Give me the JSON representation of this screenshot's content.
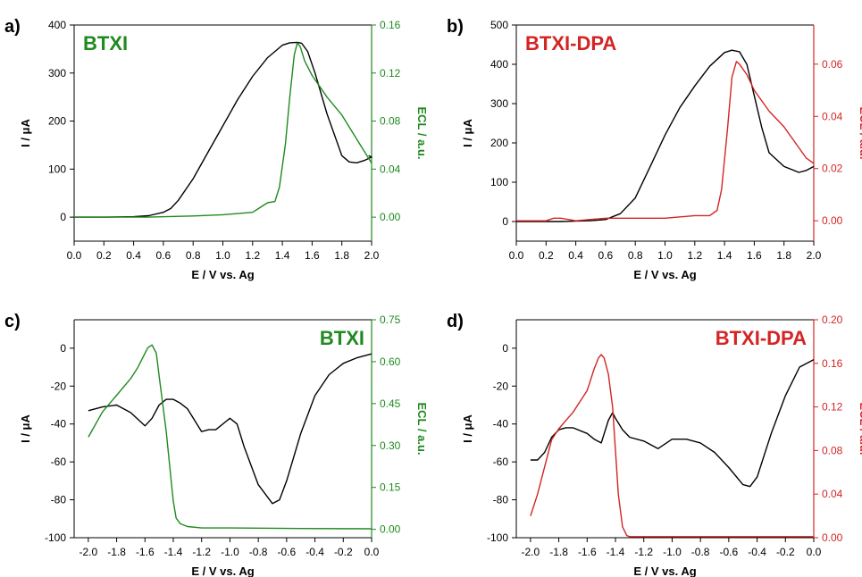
{
  "colors": {
    "current": "#000000",
    "green": "#1f8a1f",
    "red": "#d42424"
  },
  "chart_data": [
    {
      "panel_label": "a)",
      "type": "line",
      "title": "BTXI",
      "title_color": "#1f8a1f",
      "xlabel": "E / V vs. Ag",
      "ylabel": "I / μA",
      "y2label": "ECL / a.u.",
      "right_color": "#1f8a1f",
      "xlim": [
        0.0,
        2.0
      ],
      "ylim": [
        -50,
        400
      ],
      "y2lim": [
        -0.02,
        0.16
      ],
      "xticks": [
        0.0,
        0.2,
        0.4,
        0.6,
        0.8,
        1.0,
        1.2,
        1.4,
        1.6,
        1.8,
        2.0
      ],
      "yticks": [
        0,
        100,
        200,
        300,
        400
      ],
      "y2ticks": [
        0.0,
        0.04,
        0.08,
        0.12,
        0.16
      ],
      "xtick_decimals": 1,
      "y2tick_decimals": 2,
      "series": [
        {
          "axis": "left",
          "color": "#000000",
          "x": [
            0.0,
            0.2,
            0.4,
            0.5,
            0.6,
            0.65,
            0.7,
            0.8,
            0.9,
            1.0,
            1.1,
            1.2,
            1.3,
            1.4,
            1.45,
            1.5,
            1.53,
            1.57,
            1.62,
            1.7,
            1.8,
            1.85,
            1.9,
            1.95,
            2.0,
            1.98
          ],
          "y": [
            0,
            0,
            1,
            3,
            10,
            18,
            35,
            80,
            135,
            190,
            245,
            293,
            332,
            358,
            363,
            364,
            362,
            345,
            300,
            215,
            128,
            115,
            113,
            118,
            125,
            128
          ]
        },
        {
          "axis": "right",
          "color": "#1f8a1f",
          "x": [
            0.0,
            0.5,
            0.8,
            1.0,
            1.1,
            1.2,
            1.25,
            1.3,
            1.35,
            1.38,
            1.42,
            1.45,
            1.48,
            1.5,
            1.52,
            1.55,
            1.6,
            1.7,
            1.8,
            1.9,
            1.95,
            2.0
          ],
          "y": [
            0.0,
            0.0,
            0.001,
            0.002,
            0.003,
            0.004,
            0.008,
            0.012,
            0.013,
            0.025,
            0.06,
            0.1,
            0.135,
            0.145,
            0.142,
            0.13,
            0.118,
            0.1,
            0.085,
            0.065,
            0.055,
            0.045
          ]
        }
      ]
    },
    {
      "panel_label": "b)",
      "type": "line",
      "title": "BTXI-DPA",
      "title_color": "#d42424",
      "xlabel": "E / V vs. Ag",
      "ylabel": "I / μA",
      "y2label": "ECL / a.u.",
      "right_color": "#d42424",
      "xlim": [
        0.0,
        2.0
      ],
      "ylim": [
        -50,
        500
      ],
      "y2lim": [
        -0.0078,
        0.075
      ],
      "xticks": [
        0.0,
        0.2,
        0.4,
        0.6,
        0.8,
        1.0,
        1.2,
        1.4,
        1.6,
        1.8,
        2.0
      ],
      "yticks": [
        0,
        100,
        200,
        300,
        400,
        500
      ],
      "y2ticks": [
        0.0,
        0.02,
        0.04,
        0.06
      ],
      "xtick_decimals": 1,
      "y2tick_decimals": 2,
      "series": [
        {
          "axis": "left",
          "color": "#000000",
          "x": [
            0.0,
            0.3,
            0.5,
            0.6,
            0.7,
            0.8,
            0.9,
            1.0,
            1.1,
            1.2,
            1.3,
            1.4,
            1.45,
            1.5,
            1.55,
            1.6,
            1.65,
            1.7,
            1.8,
            1.9,
            1.95,
            2.0
          ],
          "y": [
            0,
            0,
            2,
            5,
            20,
            60,
            140,
            220,
            290,
            345,
            395,
            430,
            436,
            432,
            400,
            320,
            240,
            175,
            140,
            125,
            130,
            140
          ]
        },
        {
          "axis": "right",
          "color": "#d42424",
          "x": [
            0.0,
            0.2,
            0.25,
            0.3,
            0.35,
            0.4,
            0.5,
            0.6,
            0.8,
            1.0,
            1.2,
            1.3,
            1.35,
            1.38,
            1.42,
            1.45,
            1.48,
            1.5,
            1.55,
            1.6,
            1.7,
            1.8,
            1.9,
            1.95,
            2.0
          ],
          "y": [
            0.0,
            0.0,
            0.001,
            0.001,
            0.0005,
            0.0,
            0.0005,
            0.001,
            0.001,
            0.001,
            0.002,
            0.002,
            0.004,
            0.012,
            0.035,
            0.055,
            0.061,
            0.06,
            0.056,
            0.05,
            0.042,
            0.036,
            0.028,
            0.024,
            0.022
          ]
        }
      ]
    },
    {
      "panel_label": "c)",
      "type": "line",
      "title": "BTXI",
      "title_color": "#1f8a1f",
      "xlabel": "E / V vs. Ag",
      "ylabel": "I / μA",
      "y2label": "ECL / a.u.",
      "right_color": "#1f8a1f",
      "xlim": [
        -2.1,
        0.0
      ],
      "ylim": [
        -100,
        15
      ],
      "y2lim": [
        -0.03,
        0.75
      ],
      "xticks": [
        -2.0,
        -1.8,
        -1.6,
        -1.4,
        -1.2,
        -1.0,
        -0.8,
        -0.6,
        -0.4,
        -0.2,
        0.0
      ],
      "yticks": [
        0,
        -20,
        -40,
        -60,
        -80,
        -100
      ],
      "y2ticks": [
        0.0,
        0.15,
        0.3,
        0.45,
        0.6,
        0.75
      ],
      "xtick_decimals": 1,
      "y2tick_decimals": 2,
      "series": [
        {
          "axis": "left",
          "color": "#000000",
          "x": [
            -2.0,
            -1.9,
            -1.8,
            -1.7,
            -1.6,
            -1.55,
            -1.5,
            -1.45,
            -1.4,
            -1.35,
            -1.3,
            -1.2,
            -1.15,
            -1.1,
            -1.0,
            -0.95,
            -0.9,
            -0.8,
            -0.7,
            -0.65,
            -0.6,
            -0.5,
            -0.4,
            -0.3,
            -0.2,
            -0.1,
            0.0
          ],
          "y": [
            -33,
            -31,
            -30,
            -34,
            -41,
            -37,
            -30,
            -27,
            -27,
            -29,
            -32,
            -44,
            -43,
            -43,
            -37,
            -40,
            -52,
            -72,
            -82,
            -80,
            -70,
            -45,
            -25,
            -14,
            -8,
            -5,
            -3
          ]
        },
        {
          "axis": "right",
          "color": "#1f8a1f",
          "x": [
            -2.0,
            -1.9,
            -1.8,
            -1.7,
            -1.65,
            -1.6,
            -1.58,
            -1.55,
            -1.52,
            -1.5,
            -1.45,
            -1.42,
            -1.4,
            -1.38,
            -1.35,
            -1.3,
            -1.2,
            -1.0,
            -0.5,
            0.0
          ],
          "y": [
            0.33,
            0.42,
            0.48,
            0.54,
            0.58,
            0.63,
            0.65,
            0.66,
            0.63,
            0.55,
            0.35,
            0.2,
            0.1,
            0.04,
            0.02,
            0.01,
            0.005,
            0.005,
            0.003,
            0.002
          ]
        }
      ]
    },
    {
      "panel_label": "d)",
      "type": "line",
      "title": "BTXI-DPA",
      "title_color": "#d42424",
      "xlabel": "E / V vs. Ag",
      "ylabel": "I / μA",
      "y2label": "ECL / a.u.",
      "right_color": "#d42424",
      "xlim": [
        -2.1,
        0.0
      ],
      "ylim": [
        -100,
        15
      ],
      "y2lim": [
        0.0,
        0.2
      ],
      "xticks": [
        -2.0,
        -1.8,
        -1.6,
        -1.4,
        -1.2,
        -1.0,
        -0.8,
        -0.6,
        -0.4,
        -0.2,
        0.0
      ],
      "yticks": [
        0,
        -20,
        -40,
        -60,
        -80,
        -100
      ],
      "y2ticks": [
        0.0,
        0.04,
        0.08,
        0.12,
        0.16,
        0.2
      ],
      "xtick_decimals": 1,
      "y2tick_decimals": 2,
      "series": [
        {
          "axis": "left",
          "color": "#000000",
          "x": [
            -2.0,
            -1.95,
            -1.9,
            -1.85,
            -1.8,
            -1.75,
            -1.7,
            -1.6,
            -1.55,
            -1.5,
            -1.45,
            -1.42,
            -1.4,
            -1.35,
            -1.3,
            -1.2,
            -1.1,
            -1.0,
            -0.9,
            -0.8,
            -0.7,
            -0.6,
            -0.5,
            -0.45,
            -0.4,
            -0.3,
            -0.2,
            -0.1,
            0.0
          ],
          "y": [
            -59,
            -59,
            -55,
            -47,
            -43,
            -42,
            -42,
            -45,
            -48,
            -50,
            -38,
            -34,
            -37,
            -43,
            -47,
            -49,
            -53,
            -48,
            -48,
            -50,
            -55,
            -63,
            -72,
            -73,
            -68,
            -45,
            -25,
            -10,
            -6
          ]
        },
        {
          "axis": "right",
          "color": "#d42424",
          "x": [
            -2.0,
            -1.95,
            -1.9,
            -1.85,
            -1.8,
            -1.7,
            -1.6,
            -1.55,
            -1.52,
            -1.5,
            -1.48,
            -1.45,
            -1.42,
            -1.4,
            -1.38,
            -1.35,
            -1.32,
            -1.3,
            -1.2,
            -1.0,
            -0.5,
            0.0
          ],
          "y": [
            0.02,
            0.04,
            0.065,
            0.09,
            0.1,
            0.115,
            0.135,
            0.155,
            0.165,
            0.168,
            0.165,
            0.15,
            0.12,
            0.08,
            0.04,
            0.01,
            0.002,
            0.001,
            0.001,
            0.001,
            0.001,
            0.001
          ]
        }
      ]
    }
  ]
}
